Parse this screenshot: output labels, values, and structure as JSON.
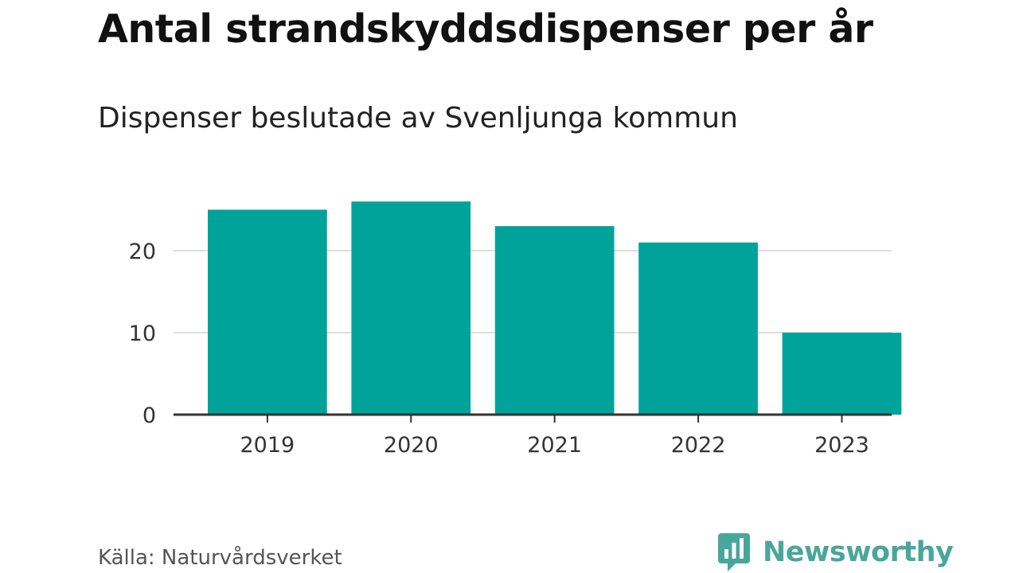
{
  "header": {
    "title": "Antal strandskyddsdispenser per år",
    "subtitle": "Dispenser beslutade av Svenljunga kommun"
  },
  "footer": {
    "source": "Källa: Naturvårdsverket",
    "brand": "Newsworthy",
    "brand_color": "#48a79a"
  },
  "chart_data": {
    "type": "bar",
    "title": "Antal strandskyddsdispenser per år",
    "subtitle": "Dispenser beslutade av Svenljunga kommun",
    "categories": [
      "2019",
      "2020",
      "2021",
      "2022",
      "2023"
    ],
    "values": [
      25,
      26,
      23,
      21,
      10
    ],
    "xlabel": "",
    "ylabel": "",
    "ylim": [
      0,
      26
    ],
    "yticks": [
      0,
      10,
      20
    ],
    "grid": true,
    "bar_color": "#00a39a",
    "grid_color": "#dddddd",
    "axis_color": "#333333"
  }
}
